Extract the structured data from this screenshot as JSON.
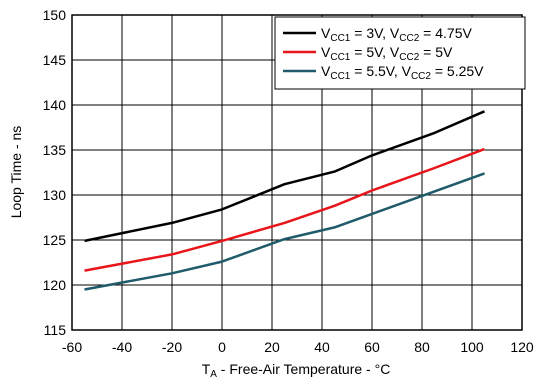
{
  "chart_data": {
    "type": "line",
    "title": "",
    "xlabel": {
      "main": "T",
      "sub": "A",
      "rest": " - Free-Air Temperature - °C"
    },
    "ylabel": "Loop Time - ns",
    "xlim": [
      -60,
      120
    ],
    "ylim": [
      115,
      150
    ],
    "xticks": [
      -60,
      -40,
      -20,
      0,
      20,
      40,
      60,
      80,
      100,
      120
    ],
    "yticks": [
      115,
      120,
      125,
      130,
      135,
      140,
      145,
      150
    ],
    "grid": true,
    "legend_position": "top-right",
    "series": [
      {
        "name": "VCC1 = 3V, VCC2 = 4.75V",
        "legend": {
          "a": "V",
          "a_sub": "CC1",
          "b": " = 3V, V",
          "b_sub": "CC2",
          "c": " = 4.75V"
        },
        "color": "#000000",
        "x": [
          -55,
          -20,
          0,
          25,
          45,
          60,
          85,
          105
        ],
        "y": [
          124.9,
          126.9,
          128.4,
          131.2,
          132.6,
          134.4,
          136.9,
          139.3
        ]
      },
      {
        "name": "VCC1 = 5V, VCC2 = 5V",
        "legend": {
          "a": "V",
          "a_sub": "CC1",
          "b": " = 5V, V",
          "b_sub": "CC2",
          "c": " = 5V"
        },
        "color": "#e8161b",
        "x": [
          -55,
          -20,
          0,
          25,
          45,
          60,
          85,
          105
        ],
        "y": [
          121.6,
          123.4,
          124.9,
          126.9,
          128.8,
          130.5,
          133.0,
          135.1
        ]
      },
      {
        "name": "VCC1 = 5.5V, VCC2 = 5.25V",
        "legend": {
          "a": "V",
          "a_sub": "CC1",
          "b": " = 5.5V, V",
          "b_sub": "CC2",
          "c": " = 5.25V"
        },
        "color": "#1f5b6b",
        "x": [
          -55,
          -20,
          0,
          25,
          45,
          60,
          85,
          105
        ],
        "y": [
          119.5,
          121.3,
          122.6,
          125.1,
          126.4,
          127.9,
          130.4,
          132.4
        ]
      }
    ]
  }
}
